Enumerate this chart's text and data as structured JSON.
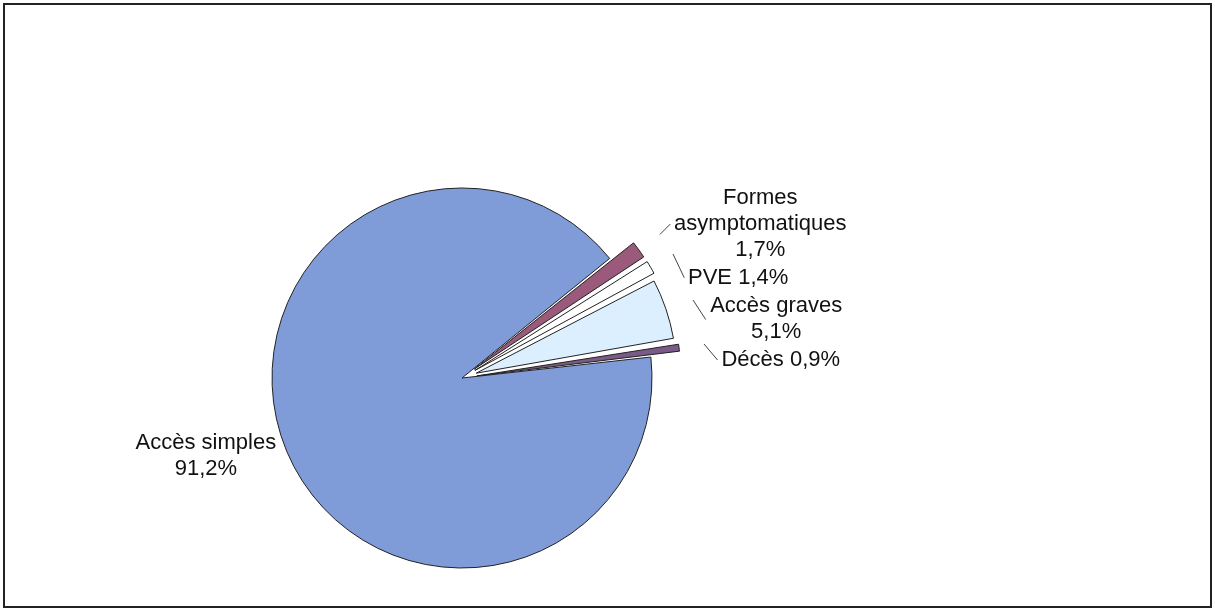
{
  "chart_data": {
    "type": "pie",
    "categories": [
      "Formes asymptomatiques",
      "PVE",
      "Accès graves",
      "Décès",
      "Accès simples"
    ],
    "values": [
      1.7,
      1.4,
      5.1,
      0.9,
      91.2
    ],
    "value_labels": [
      "1,7%",
      "1,4%",
      "5,1%",
      "0,9%",
      "91,2%"
    ],
    "colors": [
      "#9b5a7c",
      "#ffffff",
      "#dcefff",
      "#7a5a86",
      "#809cd8"
    ]
  }
}
